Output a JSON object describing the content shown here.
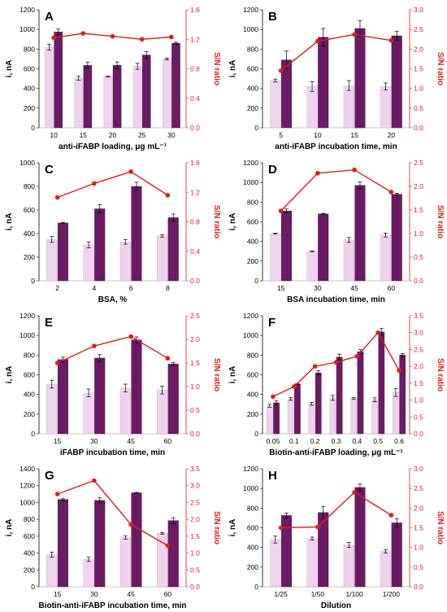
{
  "colors": {
    "bar_light": "#efd3ec",
    "bar_dark": "#6a1b63",
    "ratio_line": "#e31a1c",
    "axis": "#000000"
  },
  "chart_data": [
    {
      "panel": "A",
      "type": "bar+line",
      "categories": [
        "10",
        "15",
        "20",
        "25",
        "30"
      ],
      "xlabel": "anti-iFABP loading, μg mL⁻¹",
      "ylabel": "i, nA",
      "ylim": [
        0,
        1200
      ],
      "yticks": [
        0,
        200,
        400,
        600,
        800,
        1000,
        1200
      ],
      "y2label": "S/N ratio",
      "y2lim": [
        0,
        1.6
      ],
      "y2ticks": [
        0.0,
        0.4,
        0.8,
        1.2,
        1.6
      ],
      "series": [
        {
          "values": [
            820,
            505,
            520,
            625,
            700
          ],
          "errors": [
            30,
            20,
            5,
            30,
            10
          ]
        },
        {
          "values": [
            975,
            635,
            635,
            740,
            860
          ],
          "errors": [
            30,
            30,
            35,
            35,
            10
          ]
        }
      ],
      "ratio": [
        1.22,
        1.28,
        1.24,
        1.2,
        1.23
      ]
    },
    {
      "panel": "B",
      "type": "bar+line",
      "categories": [
        "5",
        "10",
        "15",
        "20"
      ],
      "xlabel": "anti-iFABP incubation time, min",
      "ylabel": "i, nA",
      "ylim": [
        0,
        1200
      ],
      "yticks": [
        0,
        200,
        400,
        600,
        800,
        1000,
        1200
      ],
      "y2label": "S/N ratio",
      "y2lim": [
        0,
        3.0
      ],
      "y2ticks": [
        0.0,
        0.5,
        1.0,
        1.5,
        2.0,
        2.5,
        3.0
      ],
      "series": [
        {
          "values": [
            480,
            420,
            430,
            420
          ],
          "errors": [
            15,
            50,
            50,
            35
          ]
        },
        {
          "values": [
            690,
            920,
            1010,
            935
          ],
          "errors": [
            90,
            90,
            80,
            45
          ]
        }
      ],
      "ratio": [
        1.45,
        2.2,
        2.37,
        2.22
      ]
    },
    {
      "panel": "C",
      "type": "bar+line",
      "categories": [
        "2",
        "4",
        "6",
        "8"
      ],
      "xlabel": "BSA, %",
      "ylabel": "i, nA",
      "ylim": [
        0,
        1000
      ],
      "yticks": [
        0,
        200,
        400,
        600,
        800,
        1000
      ],
      "y2label": "S/N ratio",
      "y2lim": [
        0,
        1.6
      ],
      "y2ticks": [
        0.0,
        0.4,
        0.8,
        1.2,
        1.6
      ],
      "series": [
        {
          "values": [
            350,
            305,
            330,
            380
          ],
          "errors": [
            25,
            25,
            20,
            10
          ]
        },
        {
          "values": [
            490,
            610,
            800,
            535
          ],
          "errors": [
            5,
            35,
            35,
            30
          ]
        }
      ],
      "ratio": [
        1.13,
        1.32,
        1.48,
        1.16
      ]
    },
    {
      "panel": "D",
      "type": "bar+line",
      "categories": [
        "15",
        "30",
        "45",
        "60"
      ],
      "xlabel": "BSA incubation time, min",
      "ylabel": "i, nA",
      "ylim": [
        0,
        1200
      ],
      "yticks": [
        0,
        200,
        400,
        600,
        800,
        1000,
        1200
      ],
      "y2label": "S/N ratio",
      "y2lim": [
        0,
        2.5
      ],
      "y2ticks": [
        0.0,
        0.5,
        1.0,
        1.5,
        2.0,
        2.5
      ],
      "series": [
        {
          "values": [
            480,
            300,
            415,
            465
          ],
          "errors": [
            5,
            5,
            25,
            20
          ]
        },
        {
          "values": [
            710,
            680,
            970,
            880
          ],
          "errors": [
            20,
            5,
            35,
            10
          ]
        }
      ],
      "ratio": [
        1.48,
        2.28,
        2.35,
        1.88
      ]
    },
    {
      "panel": "E",
      "type": "bar+line",
      "categories": [
        "15",
        "30",
        "45",
        "60"
      ],
      "xlabel": "iFABP incubation time, min",
      "ylabel": "i, nA",
      "ylim": [
        0,
        1200
      ],
      "yticks": [
        0,
        200,
        400,
        600,
        800,
        1000,
        1200
      ],
      "y2label": "S/N ratio",
      "y2lim": [
        0,
        2.5
      ],
      "y2ticks": [
        0.0,
        0.5,
        1.0,
        1.5,
        2.0,
        2.5
      ],
      "series": [
        {
          "values": [
            505,
            415,
            465,
            445
          ],
          "errors": [
            40,
            40,
            40,
            40
          ]
        },
        {
          "values": [
            755,
            770,
            955,
            710
          ],
          "errors": [
            25,
            35,
            30,
            15
          ]
        }
      ],
      "ratio": [
        1.5,
        1.86,
        2.06,
        1.6
      ]
    },
    {
      "panel": "F",
      "type": "bar+line",
      "categories": [
        "0.05",
        "0.1",
        "0.2",
        "0.3",
        "0.4",
        "0.5",
        "0.6"
      ],
      "xlabel": "Biotin-anti-iFABP loading, μg mL⁻¹",
      "ylabel": "i, nA",
      "ylim": [
        0,
        1200
      ],
      "yticks": [
        0,
        200,
        400,
        600,
        800,
        1000,
        1200
      ],
      "y2label": "S/N ratio",
      "y2lim": [
        0,
        3.5
      ],
      "y2ticks": [
        0.0,
        0.5,
        1.0,
        1.5,
        2.0,
        2.5,
        3.0,
        3.5
      ],
      "series": [
        {
          "values": [
            285,
            355,
            305,
            365,
            360,
            345,
            420
          ],
          "errors": [
            15,
            15,
            15,
            25,
            10,
            20,
            40
          ]
        },
        {
          "values": [
            315,
            505,
            620,
            780,
            835,
            1035,
            800
          ],
          "errors": [
            20,
            5,
            20,
            30,
            20,
            35,
            15
          ]
        }
      ],
      "ratio": [
        1.1,
        1.4,
        2.0,
        2.12,
        2.3,
        3.0,
        1.88
      ]
    },
    {
      "panel": "G",
      "type": "bar+line",
      "categories": [
        "15",
        "30",
        "45",
        "60"
      ],
      "xlabel": "Biotin-anti-iFABP incubation time, min",
      "ylabel": "i, nA",
      "ylim": [
        0,
        1400
      ],
      "yticks": [
        0,
        200,
        400,
        600,
        800,
        1000,
        1200,
        1400
      ],
      "y2label": "S/N ratio",
      "y2lim": [
        0,
        3.5
      ],
      "y2ticks": [
        0.0,
        0.5,
        1.0,
        1.5,
        2.0,
        2.5,
        3.0,
        3.5
      ],
      "series": [
        {
          "values": [
            380,
            325,
            585,
            635
          ],
          "errors": [
            30,
            25,
            20,
            10
          ]
        },
        {
          "values": [
            1035,
            1025,
            1115,
            785
          ],
          "errors": [
            10,
            30,
            5,
            35
          ]
        }
      ],
      "ratio": [
        2.75,
        3.15,
        1.85,
        1.22
      ]
    },
    {
      "panel": "H",
      "type": "bar+line",
      "categories": [
        "1/25",
        "1/50",
        "1/100",
        "1/200"
      ],
      "xlabel": "Dilution",
      "ylabel": "i, nA",
      "ylim": [
        0,
        1200
      ],
      "yticks": [
        0,
        200,
        400,
        600,
        800,
        1000,
        1200
      ],
      "y2label": "S/N ratio",
      "y2lim": [
        0,
        3.0
      ],
      "y2ticks": [
        0.0,
        0.5,
        1.0,
        1.5,
        2.0,
        2.5,
        3.0
      ],
      "series": [
        {
          "values": [
            480,
            490,
            425,
            360
          ],
          "errors": [
            35,
            15,
            25,
            15
          ]
        },
        {
          "values": [
            725,
            755,
            1010,
            650
          ],
          "errors": [
            25,
            60,
            35,
            40
          ]
        }
      ],
      "ratio": [
        1.5,
        1.52,
        2.4,
        1.82
      ]
    }
  ]
}
